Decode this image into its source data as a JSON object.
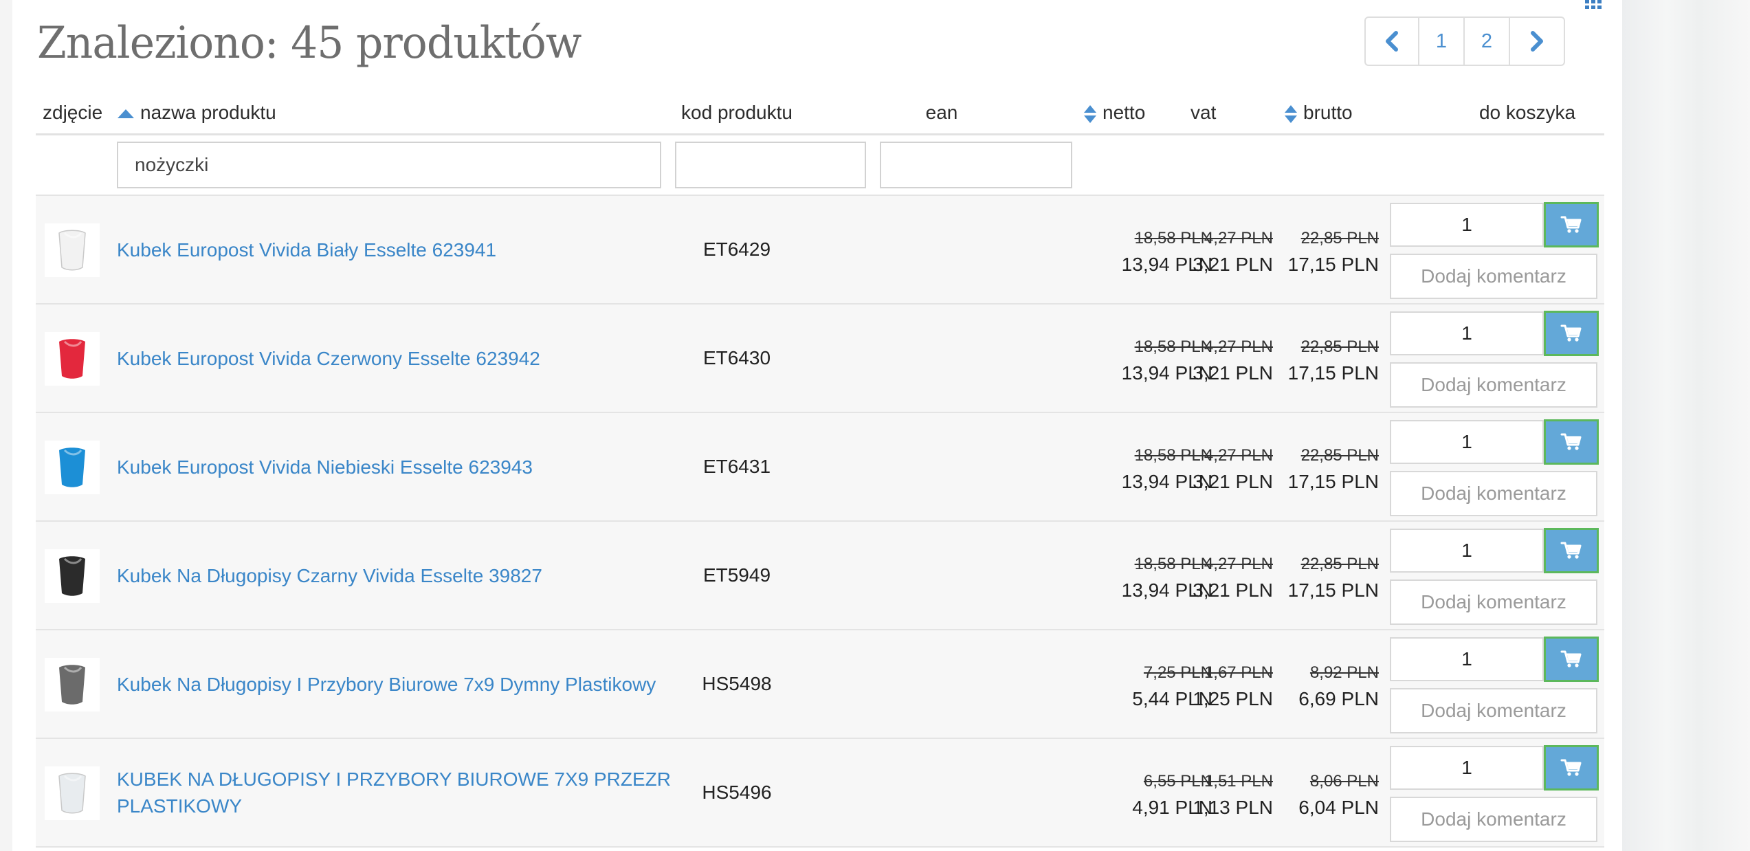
{
  "header": {
    "title": "Znaleziono: 45 produktów",
    "pagination": {
      "pages": [
        "1",
        "2"
      ]
    }
  },
  "table": {
    "headers": {
      "photo": "zdjęcie",
      "name": "nazwa produktu",
      "code": "kod produktu",
      "ean": "ean",
      "netto": "netto",
      "vat": "vat",
      "brutto": "brutto",
      "cart": "do koszyka"
    },
    "filters": {
      "name": "nożyczki",
      "code": "",
      "ean": ""
    },
    "comment_label": "Dodaj komentarz",
    "rows": [
      {
        "name": "Kubek Europost Vivida Biały Esselte 623941",
        "code": "ET6429",
        "ean": "",
        "netto_old": "18,58 PLN",
        "netto": "13,94 PLN",
        "vat_old": "4,27 PLN",
        "vat": "3,21 PLN",
        "brutto_old": "22,85 PLN",
        "brutto": "17,15 PLN",
        "qty": "1",
        "image_color": "#f2f2f2"
      },
      {
        "name": "Kubek Europost Vivida Czerwony Esselte 623942",
        "code": "ET6430",
        "ean": "",
        "netto_old": "18,58 PLN",
        "netto": "13,94 PLN",
        "vat_old": "4,27 PLN",
        "vat": "3,21 PLN",
        "brutto_old": "22,85 PLN",
        "brutto": "17,15 PLN",
        "qty": "1",
        "image_color": "#e3283d"
      },
      {
        "name": "Kubek Europost Vivida Niebieski Esselte 623943",
        "code": "ET6431",
        "ean": "",
        "netto_old": "18,58 PLN",
        "netto": "13,94 PLN",
        "vat_old": "4,27 PLN",
        "vat": "3,21 PLN",
        "brutto_old": "22,85 PLN",
        "brutto": "17,15 PLN",
        "qty": "1",
        "image_color": "#1c8fd6"
      },
      {
        "name": "Kubek Na Długopisy Czarny Vivida Esselte 39827",
        "code": "ET5949",
        "ean": "",
        "netto_old": "18,58 PLN",
        "netto": "13,94 PLN",
        "vat_old": "4,27 PLN",
        "vat": "3,21 PLN",
        "brutto_old": "22,85 PLN",
        "brutto": "17,15 PLN",
        "qty": "1",
        "image_color": "#2b2b2b"
      },
      {
        "name": "Kubek Na Długopisy I Przybory Biurowe 7x9 Dymny Plastikowy",
        "code": "HS5498",
        "ean": "",
        "netto_old": "7,25 PLN",
        "netto": "5,44 PLN",
        "vat_old": "1,67 PLN",
        "vat": "1,25 PLN",
        "brutto_old": "8,92 PLN",
        "brutto": "6,69 PLN",
        "qty": "1",
        "image_color": "#6b6b6b"
      },
      {
        "name": "KUBEK NA DŁUGOPISY I PRZYBORY BIUROWE 7X9 PRZEZR PLASTIKOWY",
        "code": "HS5496",
        "ean": "",
        "netto_old": "6,55 PLN",
        "netto": "4,91 PLN",
        "vat_old": "1,51 PLN",
        "vat": "1,13 PLN",
        "brutto_old": "8,06 PLN",
        "brutto": "6,04 PLN",
        "qty": "1",
        "image_color": "#e8ecef"
      }
    ]
  },
  "colors": {
    "link": "#3a86c8",
    "cart_button": "#63a8d8",
    "cart_button_border": "#5cb85c",
    "sort_icon": "#4a8fd0",
    "row_background": "#f7f7f7"
  },
  "icons": {
    "grid": "grid-icon",
    "prev": "chevron-left-icon",
    "next": "chevron-right-icon",
    "sort_asc": "sort-asc-icon",
    "sort_both": "sort-icon",
    "cart": "cart-icon"
  }
}
